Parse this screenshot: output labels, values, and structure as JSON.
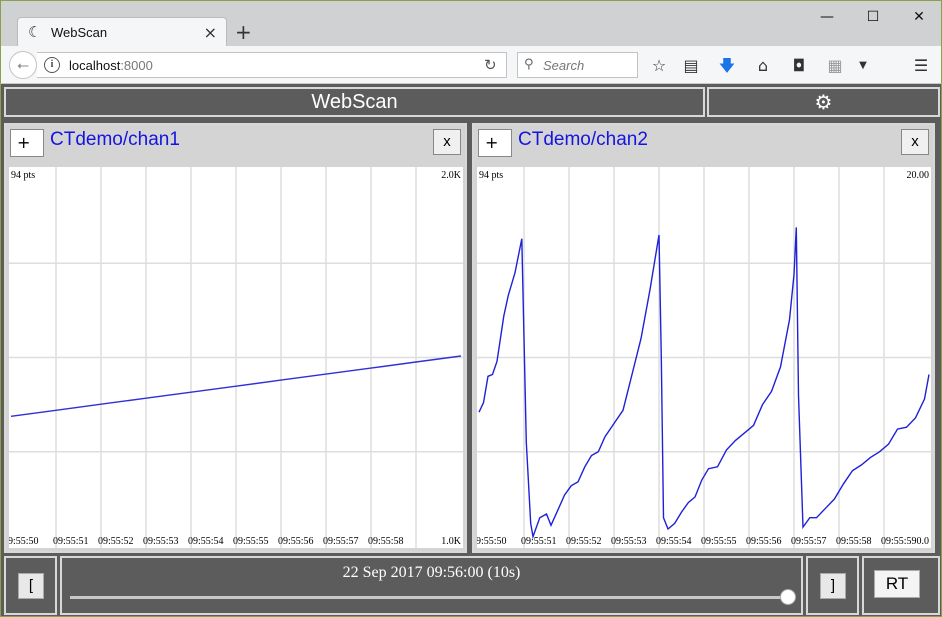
{
  "browser": {
    "tab_title": "WebScan",
    "tab_close": "×",
    "new_tab": "+",
    "url_host": "localhost",
    "url_port": ":8000",
    "search_placeholder": "Search",
    "window_controls": [
      "—",
      "☐",
      "✕"
    ]
  },
  "app": {
    "title": "WebScan",
    "settings_icon": "gear-icon"
  },
  "panels": [
    {
      "channel": "CTdemo/chan1",
      "plus_label": "+",
      "close_label": "x",
      "points_label": "94 pts",
      "y_max_label": "2.0K",
      "y_min_label": "1.0K",
      "x_ticks": [
        "9:55:50",
        "09:55:51",
        "09:55:52",
        "09:55:53",
        "09:55:54",
        "09:55:55",
        "09:55:56",
        "09:55:57",
        "09:55:58"
      ],
      "line_color": "#3030d8"
    },
    {
      "channel": "CTdemo/chan2",
      "plus_label": "+",
      "close_label": "x",
      "points_label": "94 pts",
      "y_max_label": "20.00",
      "y_min_label": "0.0",
      "x_ticks": [
        "9:55:50",
        "09:55:51",
        "09:55:52",
        "09:55:53",
        "09:55:54",
        "09:55:55",
        "09:55:56",
        "09:55:57",
        "09:55:58",
        "09:55:59"
      ],
      "line_color": "#2020d8"
    }
  ],
  "footer": {
    "left_bracket": "[",
    "right_bracket": "]",
    "time_text": "22 Sep 2017 09:56:00 (10s)",
    "rt_label": "RT",
    "slider_position": 1.0
  },
  "chart_data": [
    {
      "type": "line",
      "title": "CTdemo/chan1",
      "ylim": [
        1000,
        2000
      ],
      "x_range": [
        "09:55:50",
        "09:56:00"
      ],
      "series": [
        {
          "name": "CTdemo/chan1",
          "x": [
            0,
            1,
            2,
            3,
            4,
            5,
            6,
            7,
            8,
            9,
            10
          ],
          "y": [
            1344,
            1360,
            1376,
            1392,
            1408,
            1424,
            1440,
            1456,
            1472,
            1488,
            1504
          ]
        }
      ]
    },
    {
      "type": "line",
      "title": "CTdemo/chan2",
      "ylim": [
        0,
        20
      ],
      "x_range": [
        "09:55:50",
        "09:56:00"
      ],
      "series": [
        {
          "name": "CTdemo/chan2",
          "x": [
            0,
            0.1,
            0.2,
            0.3,
            0.4,
            0.55,
            0.65,
            0.8,
            0.95,
            1.05,
            1.15,
            1.2,
            1.35,
            1.5,
            1.6,
            1.75,
            1.9,
            2.05,
            2.2,
            2.35,
            2.5,
            2.65,
            2.8,
            3.0,
            3.2,
            3.4,
            3.6,
            3.8,
            4.0,
            4.05,
            4.1,
            4.2,
            4.35,
            4.5,
            4.65,
            4.8,
            4.95,
            5.1,
            5.3,
            5.5,
            5.7,
            5.9,
            6.1,
            6.3,
            6.5,
            6.7,
            6.9,
            7.0,
            7.05,
            7.1,
            7.2,
            7.35,
            7.5,
            7.7,
            7.9,
            8.1,
            8.3,
            8.5,
            8.7,
            8.9,
            9.1,
            9.3,
            9.5,
            9.7,
            9.9,
            10.0
          ],
          "y": [
            7.1,
            7.6,
            9.0,
            9.1,
            9.8,
            12.2,
            13.3,
            14.5,
            16.3,
            5.5,
            1.2,
            0.5,
            1.5,
            1.7,
            1.1,
            1.9,
            2.7,
            3.2,
            3.4,
            4.2,
            4.8,
            5.0,
            5.8,
            6.5,
            7.2,
            9.1,
            11.0,
            13.6,
            16.5,
            10.0,
            1.5,
            0.9,
            1.2,
            1.8,
            2.3,
            2.6,
            3.5,
            4.1,
            4.2,
            5.1,
            5.6,
            6.0,
            6.4,
            7.5,
            8.2,
            9.5,
            12.0,
            14.4,
            16.9,
            8.0,
            1.0,
            1.5,
            1.5,
            2.0,
            2.5,
            3.3,
            4.0,
            4.3,
            4.7,
            5.0,
            5.4,
            6.2,
            6.3,
            6.8,
            7.8,
            9.1
          ]
        }
      ]
    }
  ]
}
